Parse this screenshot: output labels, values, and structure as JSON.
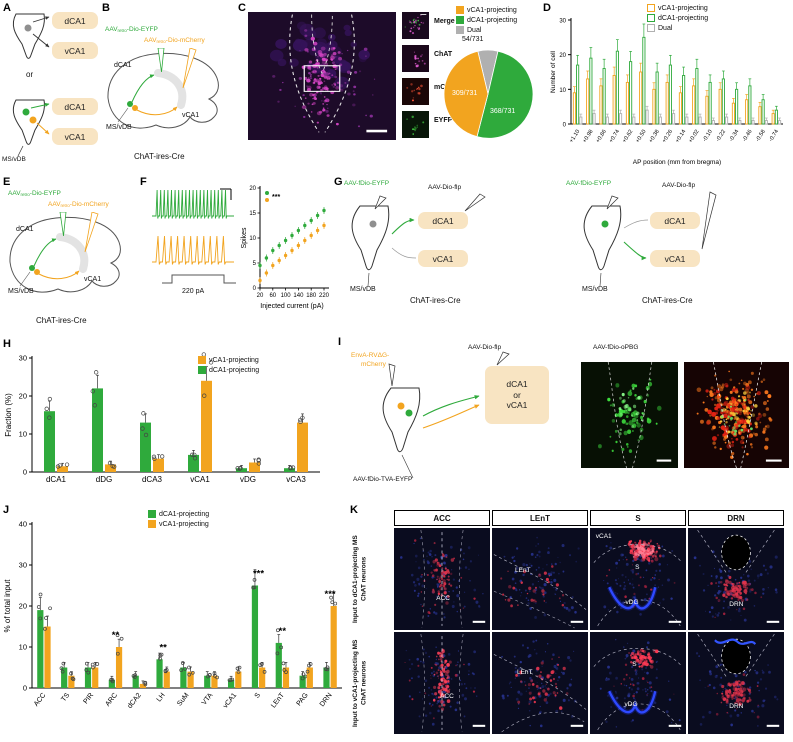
{
  "colors": {
    "green": "#2faa3c",
    "orange": "#f2a41f",
    "gray": "#b0b0b0",
    "tan": "#f8e4c2"
  },
  "panelA": {
    "label": "A",
    "top_dca1": "dCA1",
    "top_vca1": "vCA1",
    "or_text": "or",
    "bot_dca1": "dCA1",
    "bot_vca1": "vCA1",
    "msvdb": "MS/vDB"
  },
  "panelB": {
    "label": "B",
    "eyfp_pre": "AAV",
    "eyfp_sub": "retro",
    "eyfp_post": "-Dio-EYFP",
    "mch_pre": "AAV",
    "mch_sub": "retro",
    "mch_post": "-Dio-mCherry",
    "dca1": "dCA1",
    "vca1": "vCA1",
    "msvdb": "MS/vDB",
    "mouse": "ChAT-ires-Cre"
  },
  "panelC": {
    "label": "C",
    "insets": [
      "Merge",
      "ChAT",
      "mCherry",
      "EYFP"
    ]
  },
  "panelD": {
    "label": "D"
  },
  "panelE": {
    "label": "E",
    "eyfp_pre": "AAV",
    "eyfp_sub": "retro",
    "eyfp_post": "-Dio-EYFP",
    "mch_pre": "AAV",
    "mch_sub": "retro",
    "mch_post": "-Dio-mCherry",
    "dca1": "dCA1",
    "vca1": "vCA1",
    "msvdb": "MS/vDB",
    "mouse": "ChAT-ires-Cre"
  },
  "panelF": {
    "label": "F",
    "current": "220 pA"
  },
  "panelG": {
    "label": "G",
    "left": {
      "eyfp": "AAV-fDio-EYFP",
      "flp": "AAV-Dio-flp",
      "dca1": "dCA1",
      "vca1": "vCA1",
      "msvdb": "MS/vDB",
      "mouse": "ChAT-ires-Cre"
    },
    "right": {
      "eyfp": "AAV-fDio-EYFP",
      "flp": "AAV-Dio-flp",
      "dca1": "dCA1",
      "vca1": "vCA1",
      "msvdb": "MS/vDB",
      "mouse": "ChAT-ires-Cre"
    }
  },
  "panelH": {
    "label": "H"
  },
  "panelI": {
    "label": "I",
    "rv1": "EnvA-RVΔG-",
    "rv2": "mCherry",
    "flp": "AAV-Dio-flp",
    "box1": "dCA1",
    "box2": "or",
    "box3": "vCA1",
    "tva": "AAV-fDio-TVA-EYFP",
    "opbg": "AAV-fDio-oPBG"
  },
  "panelJ": {
    "label": "J"
  },
  "panelK": {
    "label": "K",
    "columns": [
      "ACC",
      "LEnT",
      "S",
      "DRN"
    ],
    "row1": "Input to dCA1-projecting MS ChAT neurons",
    "row2": "Input to vCA1-projecting MS ChAT neurons",
    "labels": {
      "r1c1": "ACC",
      "r1c2": "LEnT",
      "r1c3a": "vCA1",
      "r1c3b": "S",
      "r1c3c": "vDG",
      "r1c4": "DRN",
      "r2c1": "ACC",
      "r2c2": "LEnT",
      "r2c3a": "S",
      "r2c3b": "vDG",
      "r2c4": "DRN"
    }
  },
  "chart_data": [
    {
      "id": "pie-projection-counts",
      "type": "pie",
      "total": 731,
      "slices": [
        {
          "label": "Dual",
          "value": 54,
          "display": "54/731",
          "color": "#b0b0b0"
        },
        {
          "label": "dCA1-projecting",
          "value": 368,
          "display": "368/731",
          "color": "#2faa3c"
        },
        {
          "label": "vCA1-projecting",
          "value": 309,
          "display": "309/731",
          "color": "#f2a41f"
        }
      ],
      "legend": [
        {
          "label": "vCA1-projecting",
          "color": "#f2a41f"
        },
        {
          "label": "dCA1-projecting",
          "color": "#2faa3c"
        },
        {
          "label": "Dual",
          "color": "#b0b0b0"
        }
      ]
    },
    {
      "id": "cells-by-ap-position",
      "type": "bar",
      "ylabel": "Number of cell",
      "xlabel": "AP position (mm from bregma)",
      "ylim": [
        0,
        30
      ],
      "yticks": [
        0,
        10,
        20,
        30
      ],
      "categories": [
        "+1.10",
        "+0.98",
        "+0.86",
        "+0.74",
        "+0.62",
        "+0.50",
        "+0.38",
        "+0.26",
        "+0.14",
        "+0.02",
        "-0.10",
        "-0.22",
        "-0.34",
        "-0.46",
        "-0.58",
        "-0.74"
      ],
      "series": [
        {
          "name": "vCA1-projecting",
          "color": "#f2a41f",
          "values": [
            9,
            13,
            11,
            14,
            12,
            15,
            10,
            12,
            9,
            11,
            8,
            10,
            6,
            7,
            5,
            3
          ]
        },
        {
          "name": "dCA1-projecting",
          "color": "#2faa3c",
          "values": [
            17,
            19,
            16,
            21,
            18,
            25,
            15,
            17,
            14,
            16,
            12,
            13,
            10,
            11,
            7,
            4
          ]
        },
        {
          "name": "Dual",
          "color": "#b0b0b0",
          "values": [
            2,
            3,
            2,
            3,
            2,
            4,
            2,
            3,
            2,
            2,
            1,
            2,
            1,
            1,
            1,
            1
          ]
        }
      ],
      "legend": [
        {
          "label": "vCA1-projecting",
          "color": "#f2a41f"
        },
        {
          "label": "dCA1-projecting",
          "color": "#2faa3c"
        },
        {
          "label": "Dual",
          "color": "#b0b0b0"
        }
      ]
    },
    {
      "id": "spikes-vs-current",
      "type": "scatter",
      "ylabel": "Spikes",
      "xlabel": "Injected current (pA)",
      "ylim": [
        0,
        20
      ],
      "yticks": [
        0,
        5,
        10,
        15,
        20
      ],
      "xticks": [
        20,
        60,
        100,
        140,
        180,
        220
      ],
      "x": [
        20,
        40,
        60,
        80,
        100,
        120,
        140,
        160,
        180,
        200,
        220
      ],
      "series": [
        {
          "name": "dCA1-projecting",
          "color": "#2faa3c",
          "values": [
            4.5,
            6,
            7.5,
            8.5,
            9.5,
            10.5,
            11.5,
            12.5,
            13.5,
            14.5,
            15.5
          ]
        },
        {
          "name": "vCA1-projecting",
          "color": "#f2a41f",
          "values": [
            1.5,
            3,
            4.5,
            5.5,
            6.5,
            7.5,
            8.5,
            9.5,
            10.5,
            11.5,
            12.5
          ]
        }
      ],
      "significance": "***"
    },
    {
      "id": "axon-fraction-by-region",
      "type": "bar",
      "ylabel": "Fraction (%)",
      "xlabel": "",
      "ylim": [
        0,
        30
      ],
      "yticks": [
        0,
        10,
        20,
        30
      ],
      "categories": [
        "dCA1",
        "dDG",
        "dCA3",
        "vCA1",
        "vDG",
        "vCA3"
      ],
      "series": [
        {
          "name": "dCA1-projecting",
          "color": "#2faa3c",
          "values": [
            16,
            22,
            13,
            4.5,
            1,
            1
          ]
        },
        {
          "name": "vCA1-projecting",
          "color": "#f2a41f",
          "values": [
            1.5,
            2,
            3.5,
            24,
            2.5,
            13
          ]
        }
      ],
      "legend": [
        {
          "label": "vCA1-projecting",
          "color": "#f2a41f"
        },
        {
          "label": "dCA1-projecting",
          "color": "#2faa3c"
        }
      ]
    },
    {
      "id": "input-fraction-by-region",
      "type": "bar",
      "ylabel": "% of total input",
      "xlabel": "",
      "ylim": [
        0,
        40
      ],
      "yticks": [
        0,
        10,
        20,
        30,
        40
      ],
      "categories": [
        "ACC",
        "TS",
        "PIR",
        "ARC",
        "dCA2",
        "LH",
        "SuM",
        "VTA",
        "vCA1",
        "S",
        "LEnT",
        "PAG",
        "DRN"
      ],
      "series": [
        {
          "name": "dCA1-projecting",
          "color": "#2faa3c",
          "values": [
            19,
            5,
            5,
            2,
            3,
            7,
            5,
            3,
            2,
            25,
            11,
            3,
            5
          ]
        },
        {
          "name": "vCA1-projecting",
          "color": "#f2a41f",
          "values": [
            15,
            3,
            5,
            10,
            1,
            4,
            4,
            3,
            4,
            5,
            5,
            5,
            20
          ]
        }
      ],
      "significance": {
        "ARC": "**",
        "LH": "**",
        "S": "***",
        "LEnT": "**",
        "DRN": "***"
      },
      "legend": [
        {
          "label": "dCA1-projecting",
          "color": "#2faa3c"
        },
        {
          "label": "vCA1-projecting",
          "color": "#f2a41f"
        }
      ]
    }
  ]
}
